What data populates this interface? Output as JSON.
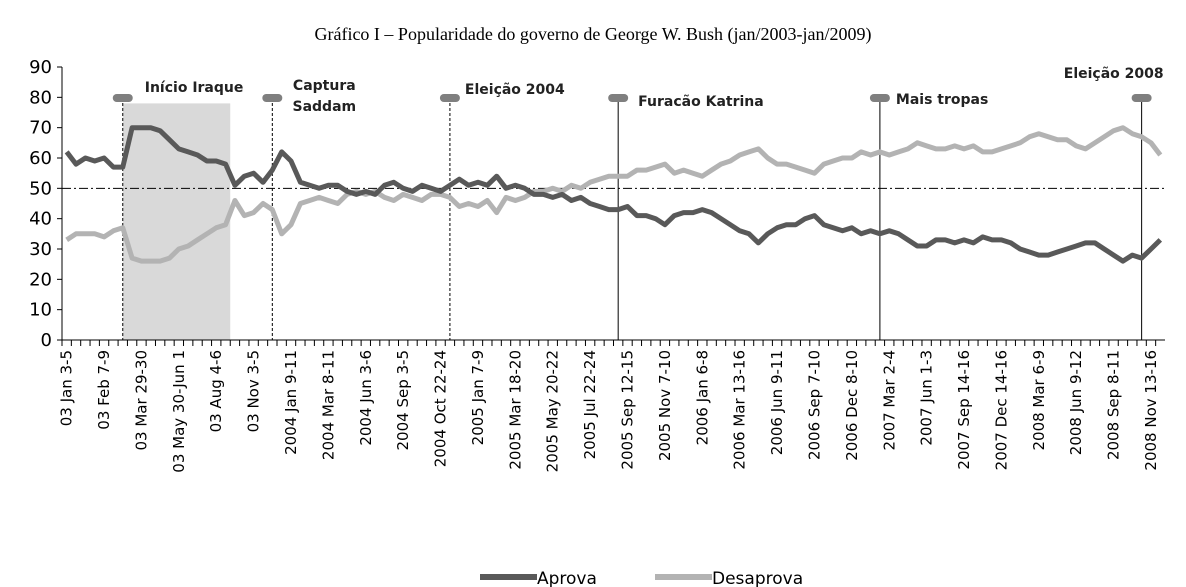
{
  "chart_data": {
    "type": "line",
    "title": "Gráfico I – Popularidade do governo de George W. Bush (jan/2003-jan/2009)",
    "categories": [
      "03 Jan 3-5",
      null,
      null,
      null,
      "03 Feb 7-9",
      null,
      null,
      null,
      "03 Mar 29-30",
      null,
      null,
      null,
      "03 May 30-Jun 1",
      null,
      null,
      null,
      "03 Aug 4-6",
      null,
      null,
      null,
      "03 Nov 3-5",
      null,
      null,
      null,
      "2004 Jan 9-11",
      null,
      null,
      null,
      "2004 Mar 8-11",
      null,
      null,
      null,
      "2004 Jun 3-6",
      null,
      null,
      null,
      "2004 Sep 3-5",
      null,
      null,
      null,
      "2004 Oct 22-24",
      null,
      null,
      null,
      "2005 Jan 7-9",
      null,
      null,
      null,
      "2005 Mar 18-20",
      null,
      null,
      null,
      "2005 May 20-22",
      null,
      null,
      null,
      "2005 Jul 22-24",
      null,
      null,
      null,
      "2005 Sep 12-15",
      null,
      null,
      null,
      "2005 Nov 7-10",
      null,
      null,
      null,
      "2006 Jan 6-8",
      null,
      null,
      null,
      "2006 Mar 13-16",
      null,
      null,
      null,
      "2006 Jun 9-11",
      null,
      null,
      null,
      "2006 Sep 7-10",
      null,
      null,
      null,
      "2006 Dec 8-10",
      null,
      null,
      null,
      "2007 Mar 2-4",
      null,
      null,
      null,
      "2007 Jun 1-3",
      null,
      null,
      null,
      "2007 Sep 14-16",
      null,
      null,
      null,
      "2007 Dec 14-16",
      null,
      null,
      null,
      "2008 Mar 6-9",
      null,
      null,
      null,
      "2008 Jun 9-12",
      null,
      null,
      null,
      "2008 Sep 8-11",
      null,
      null,
      null,
      "2008 Nov 13-16",
      null
    ],
    "series": [
      {
        "name": "Aprova",
        "color": "#595959",
        "values": [
          62,
          58,
          60,
          59,
          60,
          57,
          57,
          70,
          70,
          70,
          69,
          66,
          63,
          62,
          61,
          59,
          59,
          58,
          51,
          54,
          55,
          52,
          56,
          62,
          59,
          52,
          51,
          50,
          51,
          51,
          49,
          48,
          49,
          48,
          51,
          52,
          50,
          49,
          51,
          50,
          49,
          51,
          53,
          51,
          52,
          51,
          54,
          50,
          51,
          50,
          48,
          48,
          47,
          48,
          46,
          47,
          45,
          44,
          43,
          43,
          44,
          41,
          41,
          40,
          38,
          41,
          42,
          42,
          43,
          42,
          40,
          38,
          36,
          35,
          32,
          35,
          37,
          38,
          38,
          40,
          41,
          38,
          37,
          36,
          37,
          35,
          36,
          35,
          36,
          35,
          33,
          31,
          31,
          33,
          33,
          32,
          33,
          32,
          34,
          33,
          33,
          32,
          30,
          29,
          28,
          28,
          29,
          30,
          31,
          32,
          32,
          30,
          28,
          26,
          28,
          27,
          30,
          33
        ]
      },
      {
        "name": "Desaprova",
        "color": "#b3b3b3",
        "values": [
          33,
          35,
          35,
          35,
          34,
          36,
          37,
          27,
          26,
          26,
          26,
          27,
          30,
          31,
          33,
          35,
          37,
          38,
          46,
          41,
          42,
          45,
          43,
          35,
          38,
          45,
          46,
          47,
          46,
          45,
          48,
          49,
          48,
          49,
          47,
          46,
          48,
          47,
          46,
          48,
          48,
          47,
          44,
          45,
          44,
          46,
          42,
          47,
          46,
          47,
          49,
          49,
          50,
          49,
          51,
          50,
          52,
          53,
          54,
          54,
          54,
          56,
          56,
          57,
          58,
          55,
          56,
          55,
          54,
          56,
          58,
          59,
          61,
          62,
          63,
          60,
          58,
          58,
          57,
          56,
          55,
          58,
          59,
          60,
          60,
          62,
          61,
          62,
          61,
          62,
          63,
          65,
          64,
          63,
          63,
          64,
          63,
          64,
          62,
          62,
          63,
          64,
          65,
          67,
          68,
          67,
          66,
          66,
          64,
          63,
          65,
          67,
          69,
          70,
          68,
          67,
          65,
          61
        ]
      }
    ],
    "ylim": [
      0,
      90
    ],
    "yticks": [
      0,
      10,
      20,
      30,
      40,
      50,
      60,
      70,
      80,
      90
    ],
    "reference_line": 50,
    "annotations": [
      {
        "text": [
          "Início Iraque"
        ]
      },
      {
        "text": [
          "Captura",
          "Saddam"
        ]
      },
      {
        "text": [
          "Eleição 2004"
        ]
      },
      {
        "text": [
          "Furacão Katrina"
        ]
      },
      {
        "text": [
          "Mais tropas"
        ]
      },
      {
        "text": [
          "Eleição 2008"
        ]
      }
    ],
    "legend": "bottom"
  }
}
